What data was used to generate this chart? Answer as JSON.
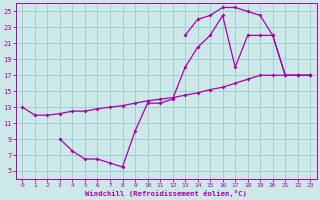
{
  "xlabel": "Windchill (Refroidissement éolien,°C)",
  "xlim": [
    -0.5,
    23.5
  ],
  "ylim": [
    4,
    26
  ],
  "xticks": [
    0,
    1,
    2,
    3,
    4,
    5,
    6,
    7,
    8,
    9,
    10,
    11,
    12,
    13,
    14,
    15,
    16,
    17,
    18,
    19,
    20,
    21,
    22,
    23
  ],
  "yticks": [
    5,
    7,
    9,
    11,
    13,
    15,
    17,
    19,
    21,
    23,
    25
  ],
  "bg_color": "#cce8e8",
  "grid_color": "#99cccc",
  "line_color": "#aa00aa",
  "line1_x": [
    0,
    1,
    2,
    3,
    4,
    5,
    6,
    7,
    8,
    9,
    10,
    11,
    12,
    13,
    14,
    15,
    16,
    17,
    18,
    19,
    20,
    21,
    22,
    23
  ],
  "line1_y": [
    13,
    12,
    12,
    12.2,
    12.5,
    12.5,
    12.8,
    13,
    13.2,
    13.5,
    13.8,
    14,
    14.2,
    14.5,
    14.8,
    15.2,
    15.5,
    16,
    16.5,
    17,
    17,
    17,
    17,
    17
  ],
  "line2_x": [
    3,
    4,
    5,
    6,
    7,
    8,
    9,
    10,
    11,
    12,
    13,
    14,
    15,
    16,
    17,
    18,
    19,
    20,
    21,
    22,
    23
  ],
  "line2_y": [
    9,
    7.5,
    6.5,
    6.5,
    6,
    5.5,
    10,
    13.5,
    13.5,
    14,
    18,
    20.5,
    22,
    24.5,
    18,
    22,
    22,
    22,
    17,
    17,
    17
  ],
  "line3_x": [
    13,
    14,
    15,
    16,
    17,
    18,
    19,
    20,
    21,
    22,
    23
  ],
  "line3_y": [
    22,
    24,
    24.5,
    25.5,
    25.5,
    25,
    24.5,
    22,
    17,
    17,
    17
  ]
}
